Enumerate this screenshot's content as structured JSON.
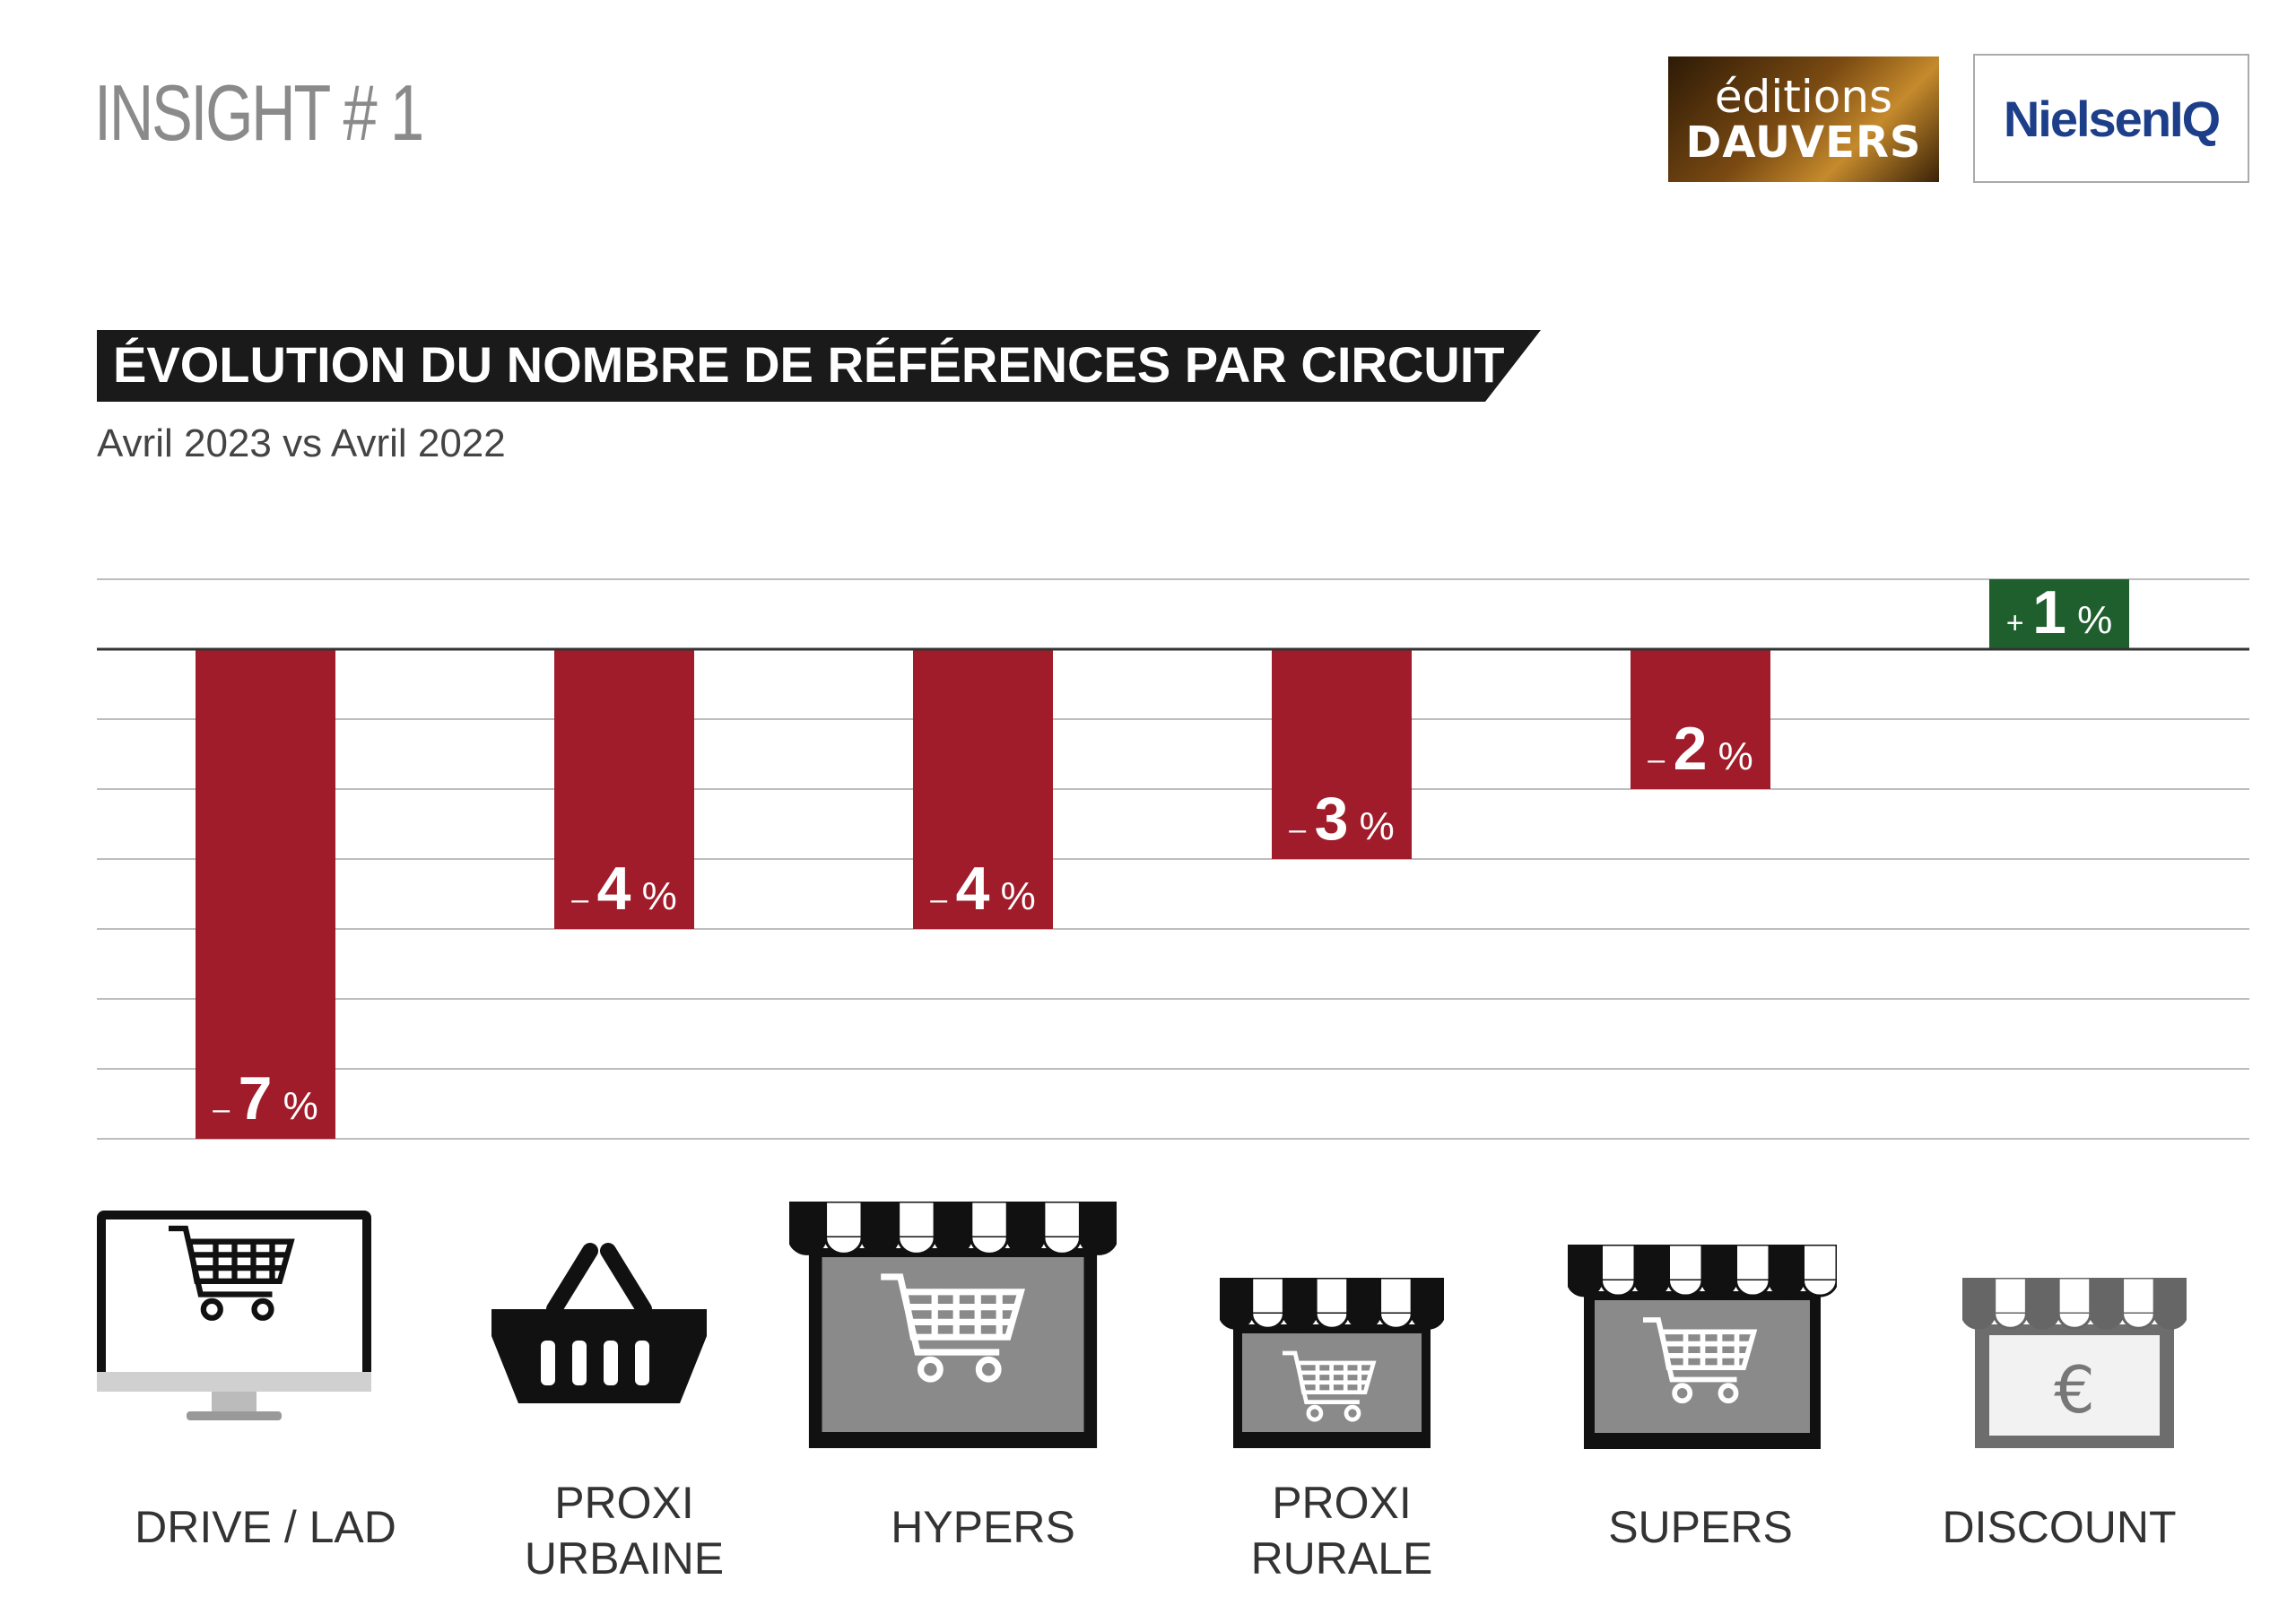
{
  "header": {
    "insight": "INSIGHT # 1",
    "logo_dauvers_line1": "éditions",
    "logo_dauvers_line2": "DAUVERS",
    "logo_nielsen": "NielsenIQ"
  },
  "colors": {
    "negative": "#a11c2a",
    "positive": "#1f5f2e",
    "banner": "#1a1a1a",
    "grid": "#bdbdbd",
    "axis": "#333333"
  },
  "chart_data": {
    "type": "bar",
    "title": "ÉVOLUTION DU NOMBRE DE RÉFÉRENCES PAR CIRCUIT",
    "subtitle": "Avril 2023 vs Avril 2022",
    "categories": [
      "DRIVE / LAD",
      "PROXI URBAINE",
      "HYPERS",
      "PROXI RURALE",
      "SUPERS",
      "DISCOUNT"
    ],
    "category_lines": [
      [
        "DRIVE / LAD"
      ],
      [
        "PROXI",
        "URBAINE"
      ],
      [
        "HYPERS"
      ],
      [
        "PROXI",
        "RURALE"
      ],
      [
        "SUPERS"
      ],
      [
        "DISCOUNT"
      ]
    ],
    "values": [
      -7,
      -4,
      -4,
      -3,
      -2,
      1
    ],
    "labels": [
      {
        "sign": "–",
        "num": "7",
        "unit": "%"
      },
      {
        "sign": "–",
        "num": "4",
        "unit": "%"
      },
      {
        "sign": "–",
        "num": "4",
        "unit": "%"
      },
      {
        "sign": "–",
        "num": "3",
        "unit": "%"
      },
      {
        "sign": "–",
        "num": "2",
        "unit": "%"
      },
      {
        "sign": "+",
        "num": "1",
        "unit": "%"
      }
    ],
    "icons": [
      "computer-cart-icon",
      "basket-icon",
      "hyper-store-icon",
      "rural-store-icon",
      "super-store-icon",
      "discount-store-icon"
    ],
    "ylim": [
      -7,
      1
    ],
    "grid": true,
    "xlabel": "",
    "ylabel": ""
  }
}
